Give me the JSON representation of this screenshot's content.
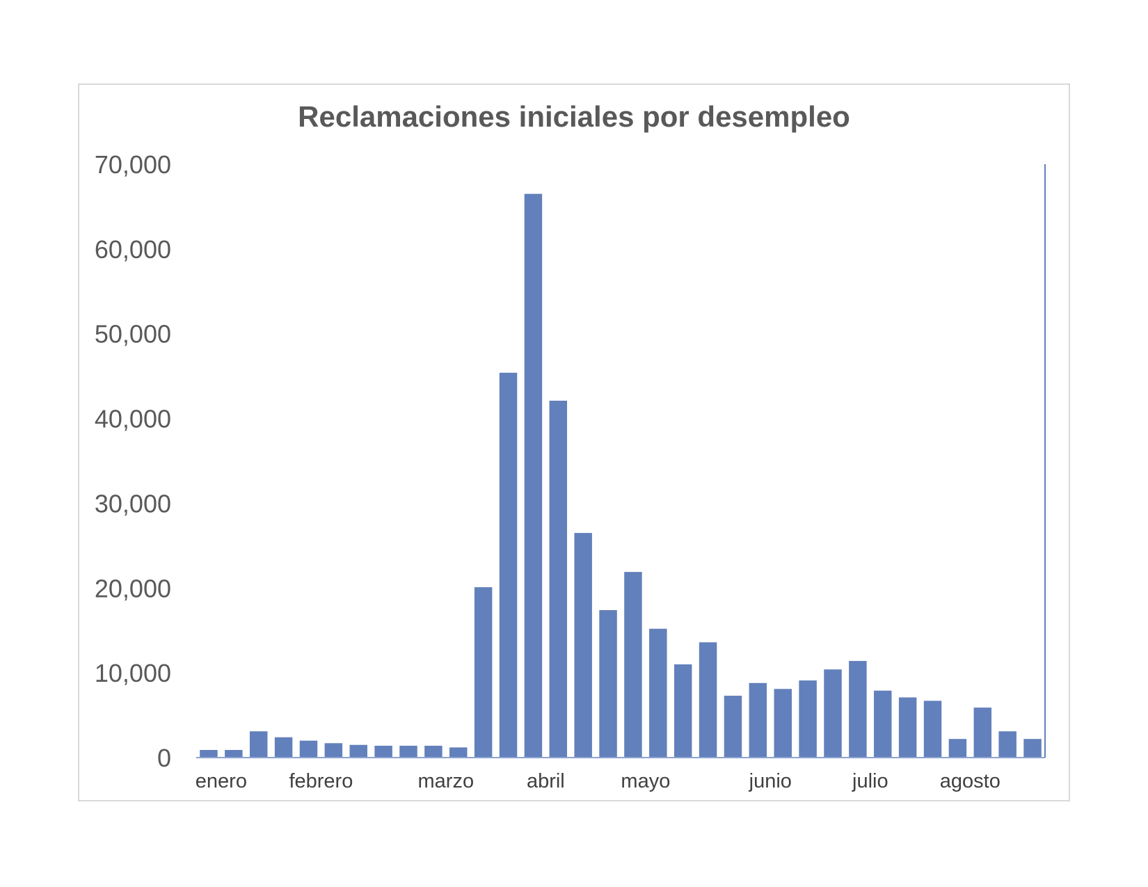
{
  "chart_data": {
    "type": "bar",
    "title": "Reclamaciones iniciales por desempleo",
    "xlabel": "",
    "ylabel": "",
    "ylim": [
      0,
      70000
    ],
    "yticks": [
      "0",
      "10,000",
      "20,000",
      "30,000",
      "40,000",
      "50,000",
      "60,000",
      "70,000"
    ],
    "grid": false,
    "legend": "none",
    "bar_color": "#6280BB",
    "axis_color": "#8EA3CF",
    "month_labels": [
      {
        "label": "enero",
        "bar_index": 0.5
      },
      {
        "label": "febrero",
        "bar_index": 4.5
      },
      {
        "label": "marzo",
        "bar_index": 9.5
      },
      {
        "label": "abril",
        "bar_index": 13.5
      },
      {
        "label": "mayo",
        "bar_index": 17.5
      },
      {
        "label": "junio",
        "bar_index": 22.5
      },
      {
        "label": "julio",
        "bar_index": 26.5
      },
      {
        "label": "agosto",
        "bar_index": 30.5
      }
    ],
    "values": [
      900,
      900,
      3100,
      2400,
      2000,
      1700,
      1500,
      1400,
      1400,
      1400,
      1200,
      20100,
      45400,
      66500,
      42100,
      26500,
      17400,
      21900,
      15200,
      11000,
      13600,
      7300,
      8800,
      8100,
      9100,
      10400,
      11400,
      7900,
      7100,
      6700,
      2200,
      5900,
      3100,
      2200
    ]
  }
}
